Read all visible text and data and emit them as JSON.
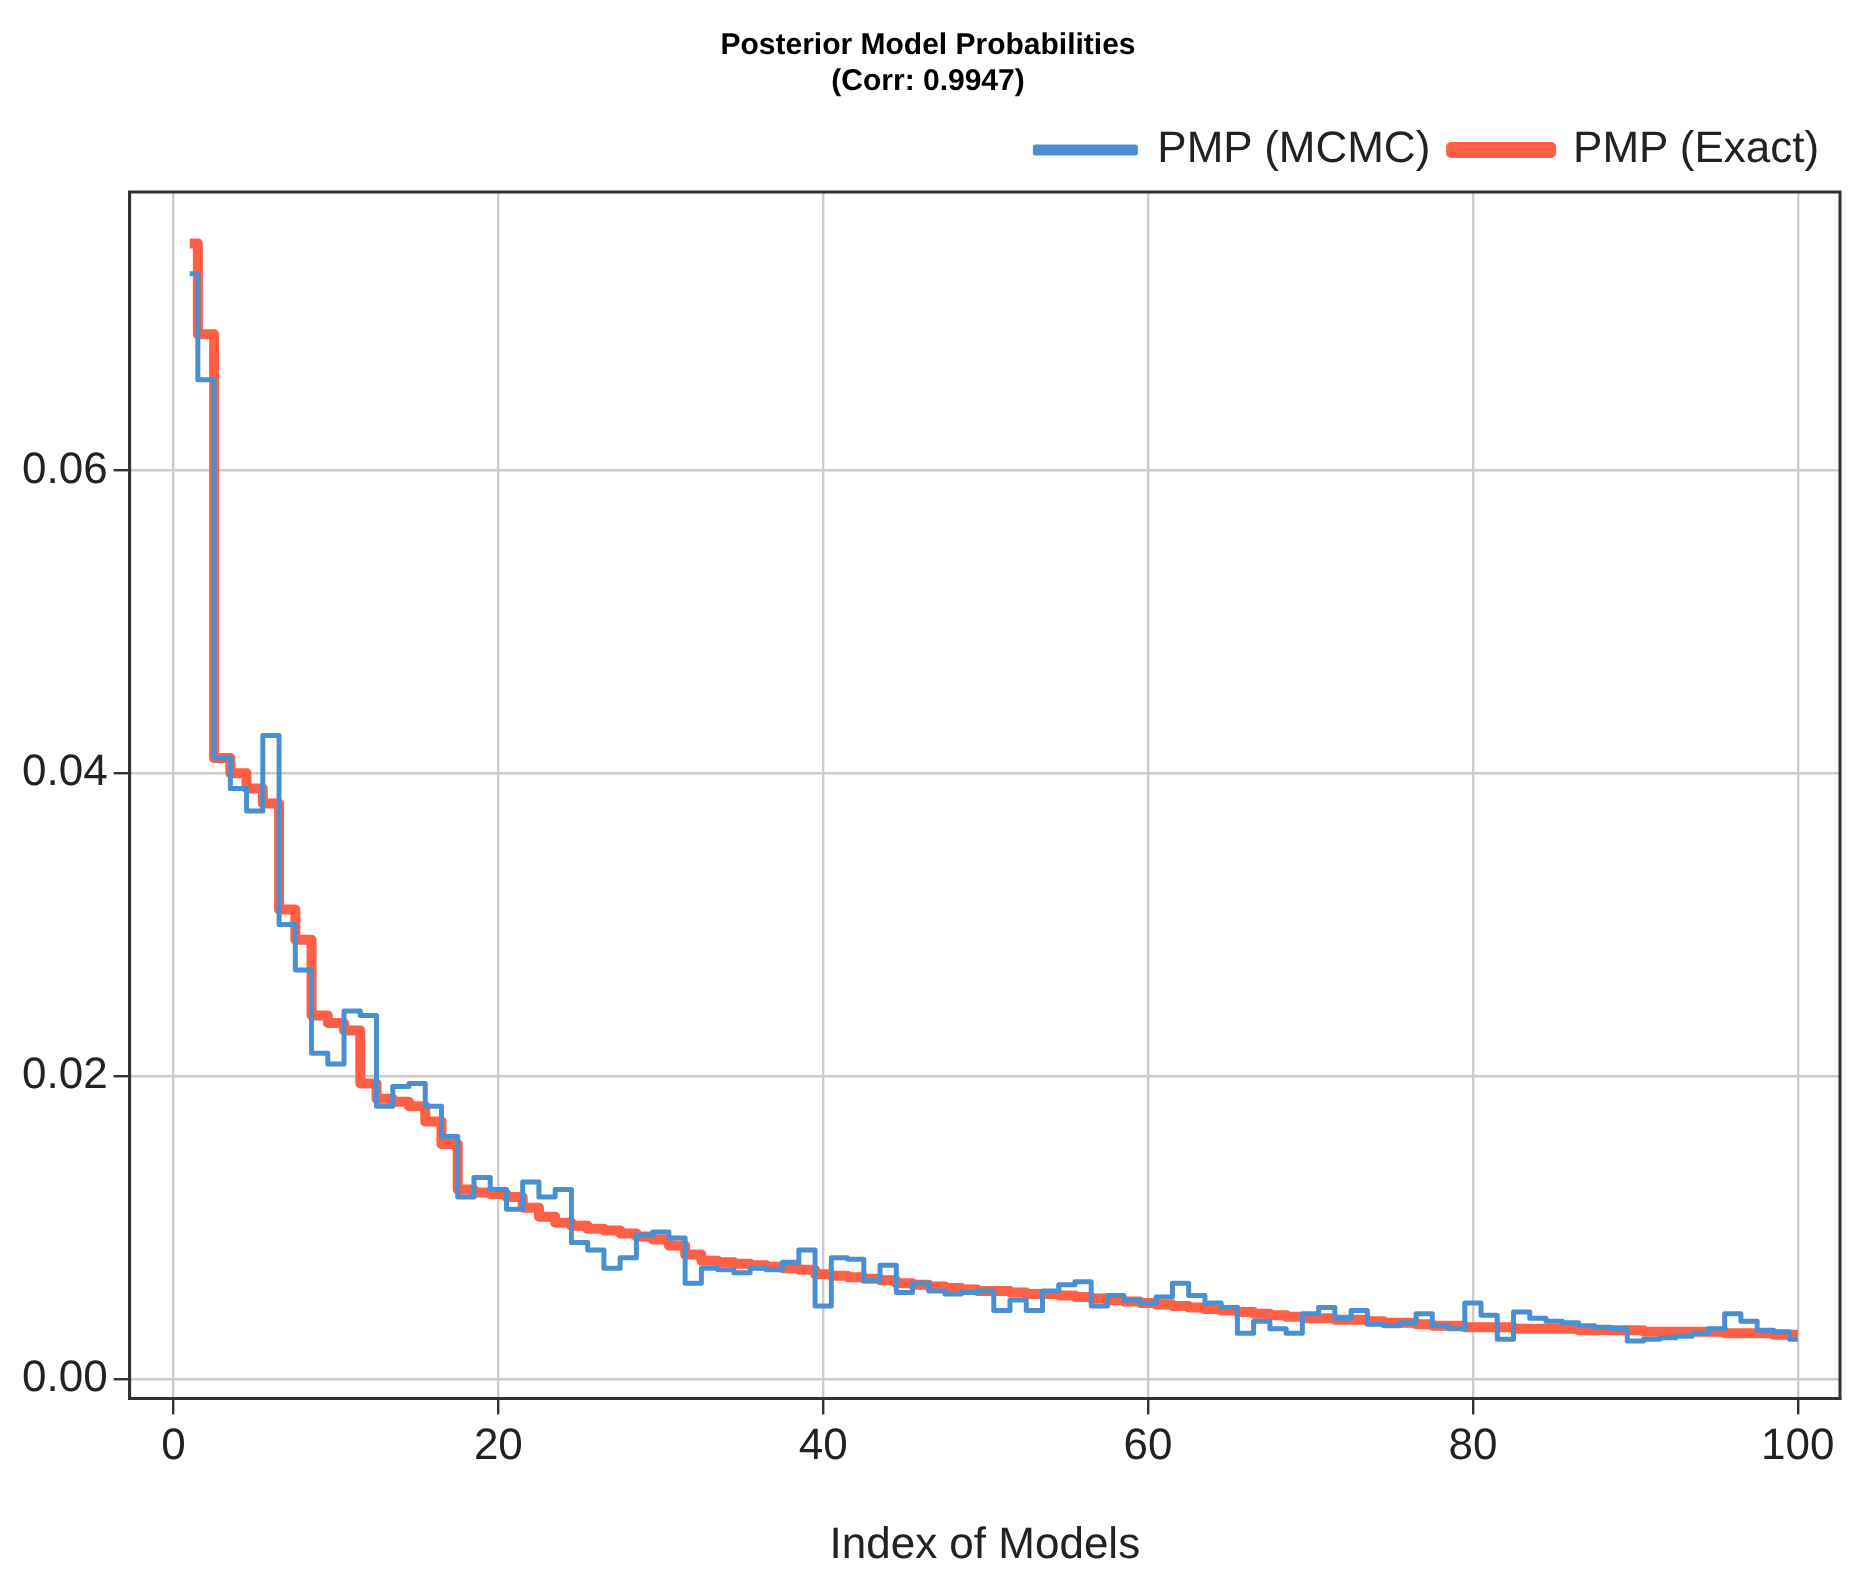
{
  "chart_data": {
    "type": "step",
    "title": "Posterior Model Probabilities",
    "subtitle": "(Corr: 0.9947)",
    "xlabel": "Index of Models",
    "x": [
      1,
      2,
      3,
      4,
      5,
      6,
      7,
      8,
      9,
      10,
      11,
      12,
      13,
      14,
      15,
      16,
      17,
      18,
      19,
      20,
      21,
      22,
      23,
      24,
      25,
      26,
      27,
      28,
      29,
      30,
      31,
      32,
      33,
      34,
      35,
      36,
      37,
      38,
      39,
      40,
      41,
      42,
      43,
      44,
      45,
      46,
      47,
      48,
      49,
      50,
      51,
      52,
      53,
      54,
      55,
      56,
      57,
      58,
      59,
      60,
      61,
      62,
      63,
      64,
      65,
      66,
      67,
      68,
      69,
      70,
      71,
      72,
      73,
      74,
      75,
      76,
      77,
      78,
      79,
      80,
      81,
      82,
      83,
      84,
      85,
      86,
      87,
      88,
      89,
      90,
      91,
      92,
      93,
      94,
      95,
      96,
      97,
      98,
      99,
      100
    ],
    "series": [
      {
        "name": "PMP (MCMC)",
        "color": "#4a90d0",
        "values": [
          0.073,
          0.066,
          0.041,
          0.039,
          0.0375,
          0.0425,
          0.03,
          0.027,
          0.0215,
          0.0208,
          0.0243,
          0.024,
          0.018,
          0.0193,
          0.0195,
          0.018,
          0.016,
          0.012,
          0.0133,
          0.0125,
          0.0112,
          0.013,
          0.012,
          0.0125,
          0.009,
          0.0085,
          0.0073,
          0.008,
          0.0095,
          0.0097,
          0.0093,
          0.0063,
          0.0073,
          0.0072,
          0.007,
          0.0073,
          0.0072,
          0.0077,
          0.0085,
          0.0048,
          0.008,
          0.0079,
          0.0065,
          0.0075,
          0.0057,
          0.0063,
          0.0058,
          0.0056,
          0.0057,
          0.0058,
          0.0045,
          0.0052,
          0.0045,
          0.0058,
          0.0062,
          0.0064,
          0.0048,
          0.0055,
          0.0052,
          0.005,
          0.0054,
          0.0063,
          0.0055,
          0.005,
          0.0047,
          0.003,
          0.0038,
          0.0033,
          0.003,
          0.0043,
          0.0047,
          0.004,
          0.0045,
          0.0036,
          0.0035,
          0.0037,
          0.0043,
          0.0035,
          0.0033,
          0.005,
          0.0042,
          0.0026,
          0.0044,
          0.004,
          0.0038,
          0.0037,
          0.0035,
          0.0034,
          0.0033,
          0.0025,
          0.0026,
          0.0027,
          0.0028,
          0.003,
          0.0033,
          0.0043,
          0.0038,
          0.0032,
          0.0031,
          0.0026
        ]
      },
      {
        "name": "PMP (Exact)",
        "color": "#ff5f45",
        "values": [
          0.075,
          0.069,
          0.041,
          0.04,
          0.039,
          0.038,
          0.031,
          0.029,
          0.024,
          0.0235,
          0.023,
          0.0195,
          0.0185,
          0.0183,
          0.018,
          0.017,
          0.0155,
          0.0125,
          0.0123,
          0.0122,
          0.012,
          0.0113,
          0.0107,
          0.0103,
          0.0101,
          0.0099,
          0.0098,
          0.0096,
          0.0094,
          0.0092,
          0.0088,
          0.0082,
          0.0078,
          0.0077,
          0.0076,
          0.0075,
          0.0074,
          0.0073,
          0.0072,
          0.0069,
          0.0068,
          0.0067,
          0.0066,
          0.0065,
          0.0063,
          0.0062,
          0.0061,
          0.006,
          0.0059,
          0.0058,
          0.0058,
          0.0057,
          0.0056,
          0.0056,
          0.0055,
          0.0054,
          0.0053,
          0.0052,
          0.0051,
          0.005,
          0.0049,
          0.0048,
          0.0047,
          0.0046,
          0.0045,
          0.0044,
          0.0043,
          0.0042,
          0.0041,
          0.004,
          0.004,
          0.0039,
          0.0039,
          0.0038,
          0.0037,
          0.0037,
          0.0036,
          0.0035,
          0.0035,
          0.0034,
          0.0034,
          0.0034,
          0.0033,
          0.0033,
          0.0033,
          0.0033,
          0.0032,
          0.0032,
          0.0032,
          0.0032,
          0.0031,
          0.0031,
          0.0031,
          0.0031,
          0.0031,
          0.003,
          0.003,
          0.003,
          0.0029,
          0.0029
        ]
      }
    ],
    "xlim": [
      -2.7,
      102.6
    ],
    "ylim": [
      -0.0013,
      0.0784
    ],
    "xticks": [
      0,
      20,
      40,
      60,
      80,
      100
    ],
    "yticks": [
      {
        "value": 0,
        "label": "0.00"
      },
      {
        "value": 0.02,
        "label": "0.02"
      },
      {
        "value": 0.04,
        "label": "0.04"
      },
      {
        "value": 0.06,
        "label": "0.06"
      }
    ],
    "grid": true,
    "legend": "top right",
    "line_style": "solid",
    "marker": "none"
  }
}
